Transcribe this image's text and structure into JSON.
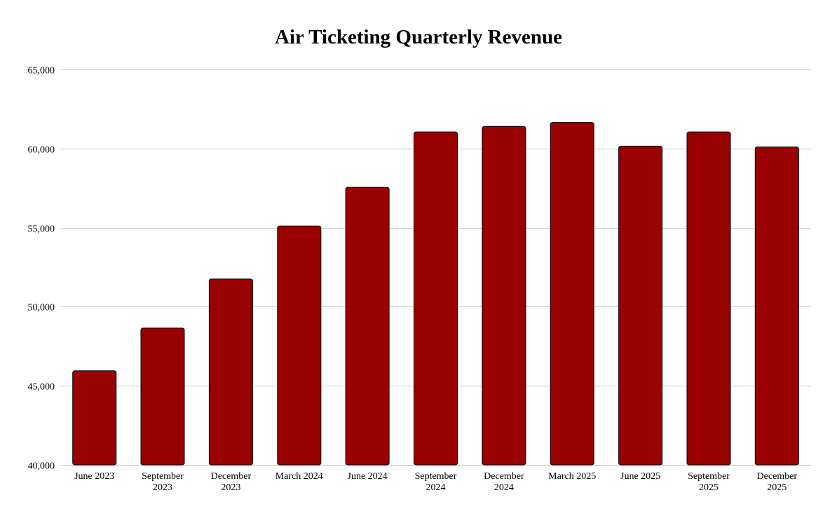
{
  "chart_data": {
    "type": "bar",
    "title": "Air Ticketing Quarterly Revenue",
    "xlabel": "",
    "ylabel": "",
    "categories": [
      "June 2023",
      "September 2023",
      "December 2023",
      "March 2024",
      "June 2024",
      "September 2024",
      "December 2024",
      "March 2025",
      "June 2025",
      "September 2025",
      "December 2025"
    ],
    "category_lines": [
      [
        "June 2023"
      ],
      [
        "September",
        "2023"
      ],
      [
        "December",
        "2023"
      ],
      [
        "March 2024"
      ],
      [
        "June 2024"
      ],
      [
        "September",
        "2024"
      ],
      [
        "December",
        "2024"
      ],
      [
        "March 2025"
      ],
      [
        "June 2025"
      ],
      [
        "September",
        "2025"
      ],
      [
        "December",
        "2025"
      ]
    ],
    "values": [
      45950,
      48650,
      51750,
      55100,
      57550,
      61050,
      61400,
      61650,
      60150,
      61050,
      60100
    ],
    "ylim": [
      40000,
      65000
    ],
    "yticks": [
      40000,
      45000,
      50000,
      55000,
      60000,
      65000
    ],
    "ytick_labels": [
      "40,000",
      "45,000",
      "50,000",
      "55,000",
      "60,000",
      "65,000"
    ],
    "grid": true,
    "legend": "none",
    "colors": {
      "bar": "#990000",
      "bar_border": "#000000",
      "grid": "#cccccc"
    }
  }
}
